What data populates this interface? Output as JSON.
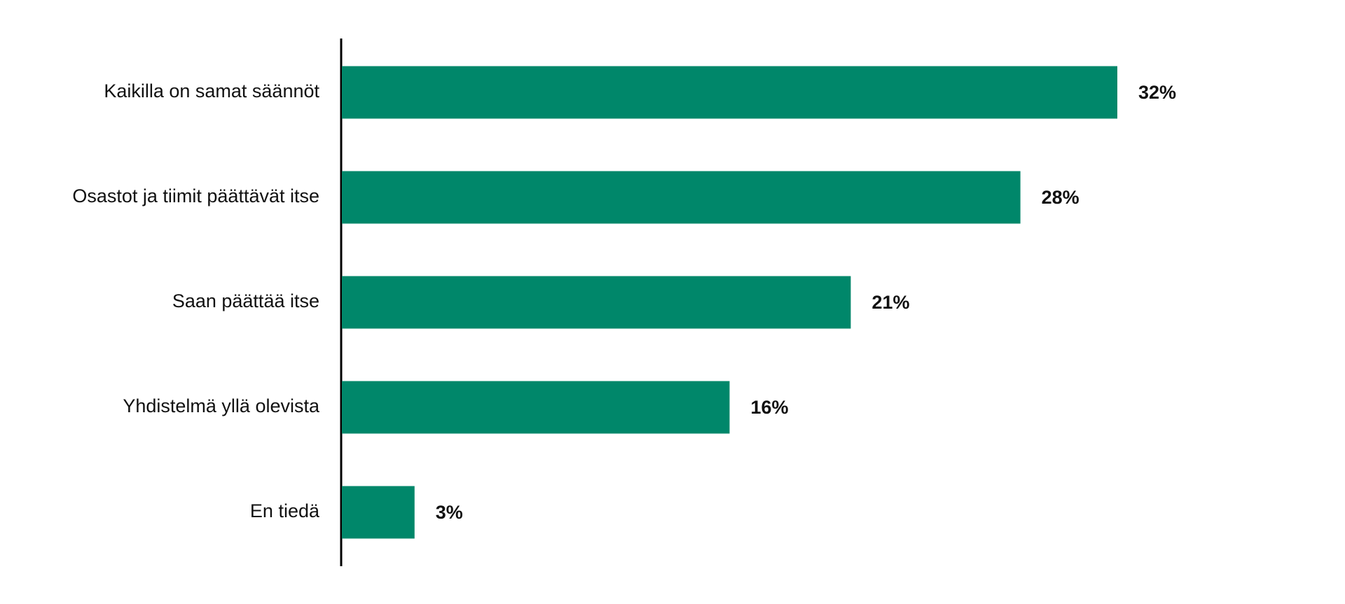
{
  "chart_data": {
    "type": "bar",
    "orientation": "horizontal",
    "categories": [
      "Kaikilla on samat säännöt",
      "Osastot ja tiimit päättävät itse",
      "Saan päättää itse",
      "Yhdistelmä yllä olevista",
      "En tiedä"
    ],
    "values": [
      32,
      28,
      21,
      16,
      3
    ],
    "value_labels": [
      "32%",
      "28%",
      "21%",
      "16%",
      "3%"
    ],
    "color": "#00876a"
  }
}
